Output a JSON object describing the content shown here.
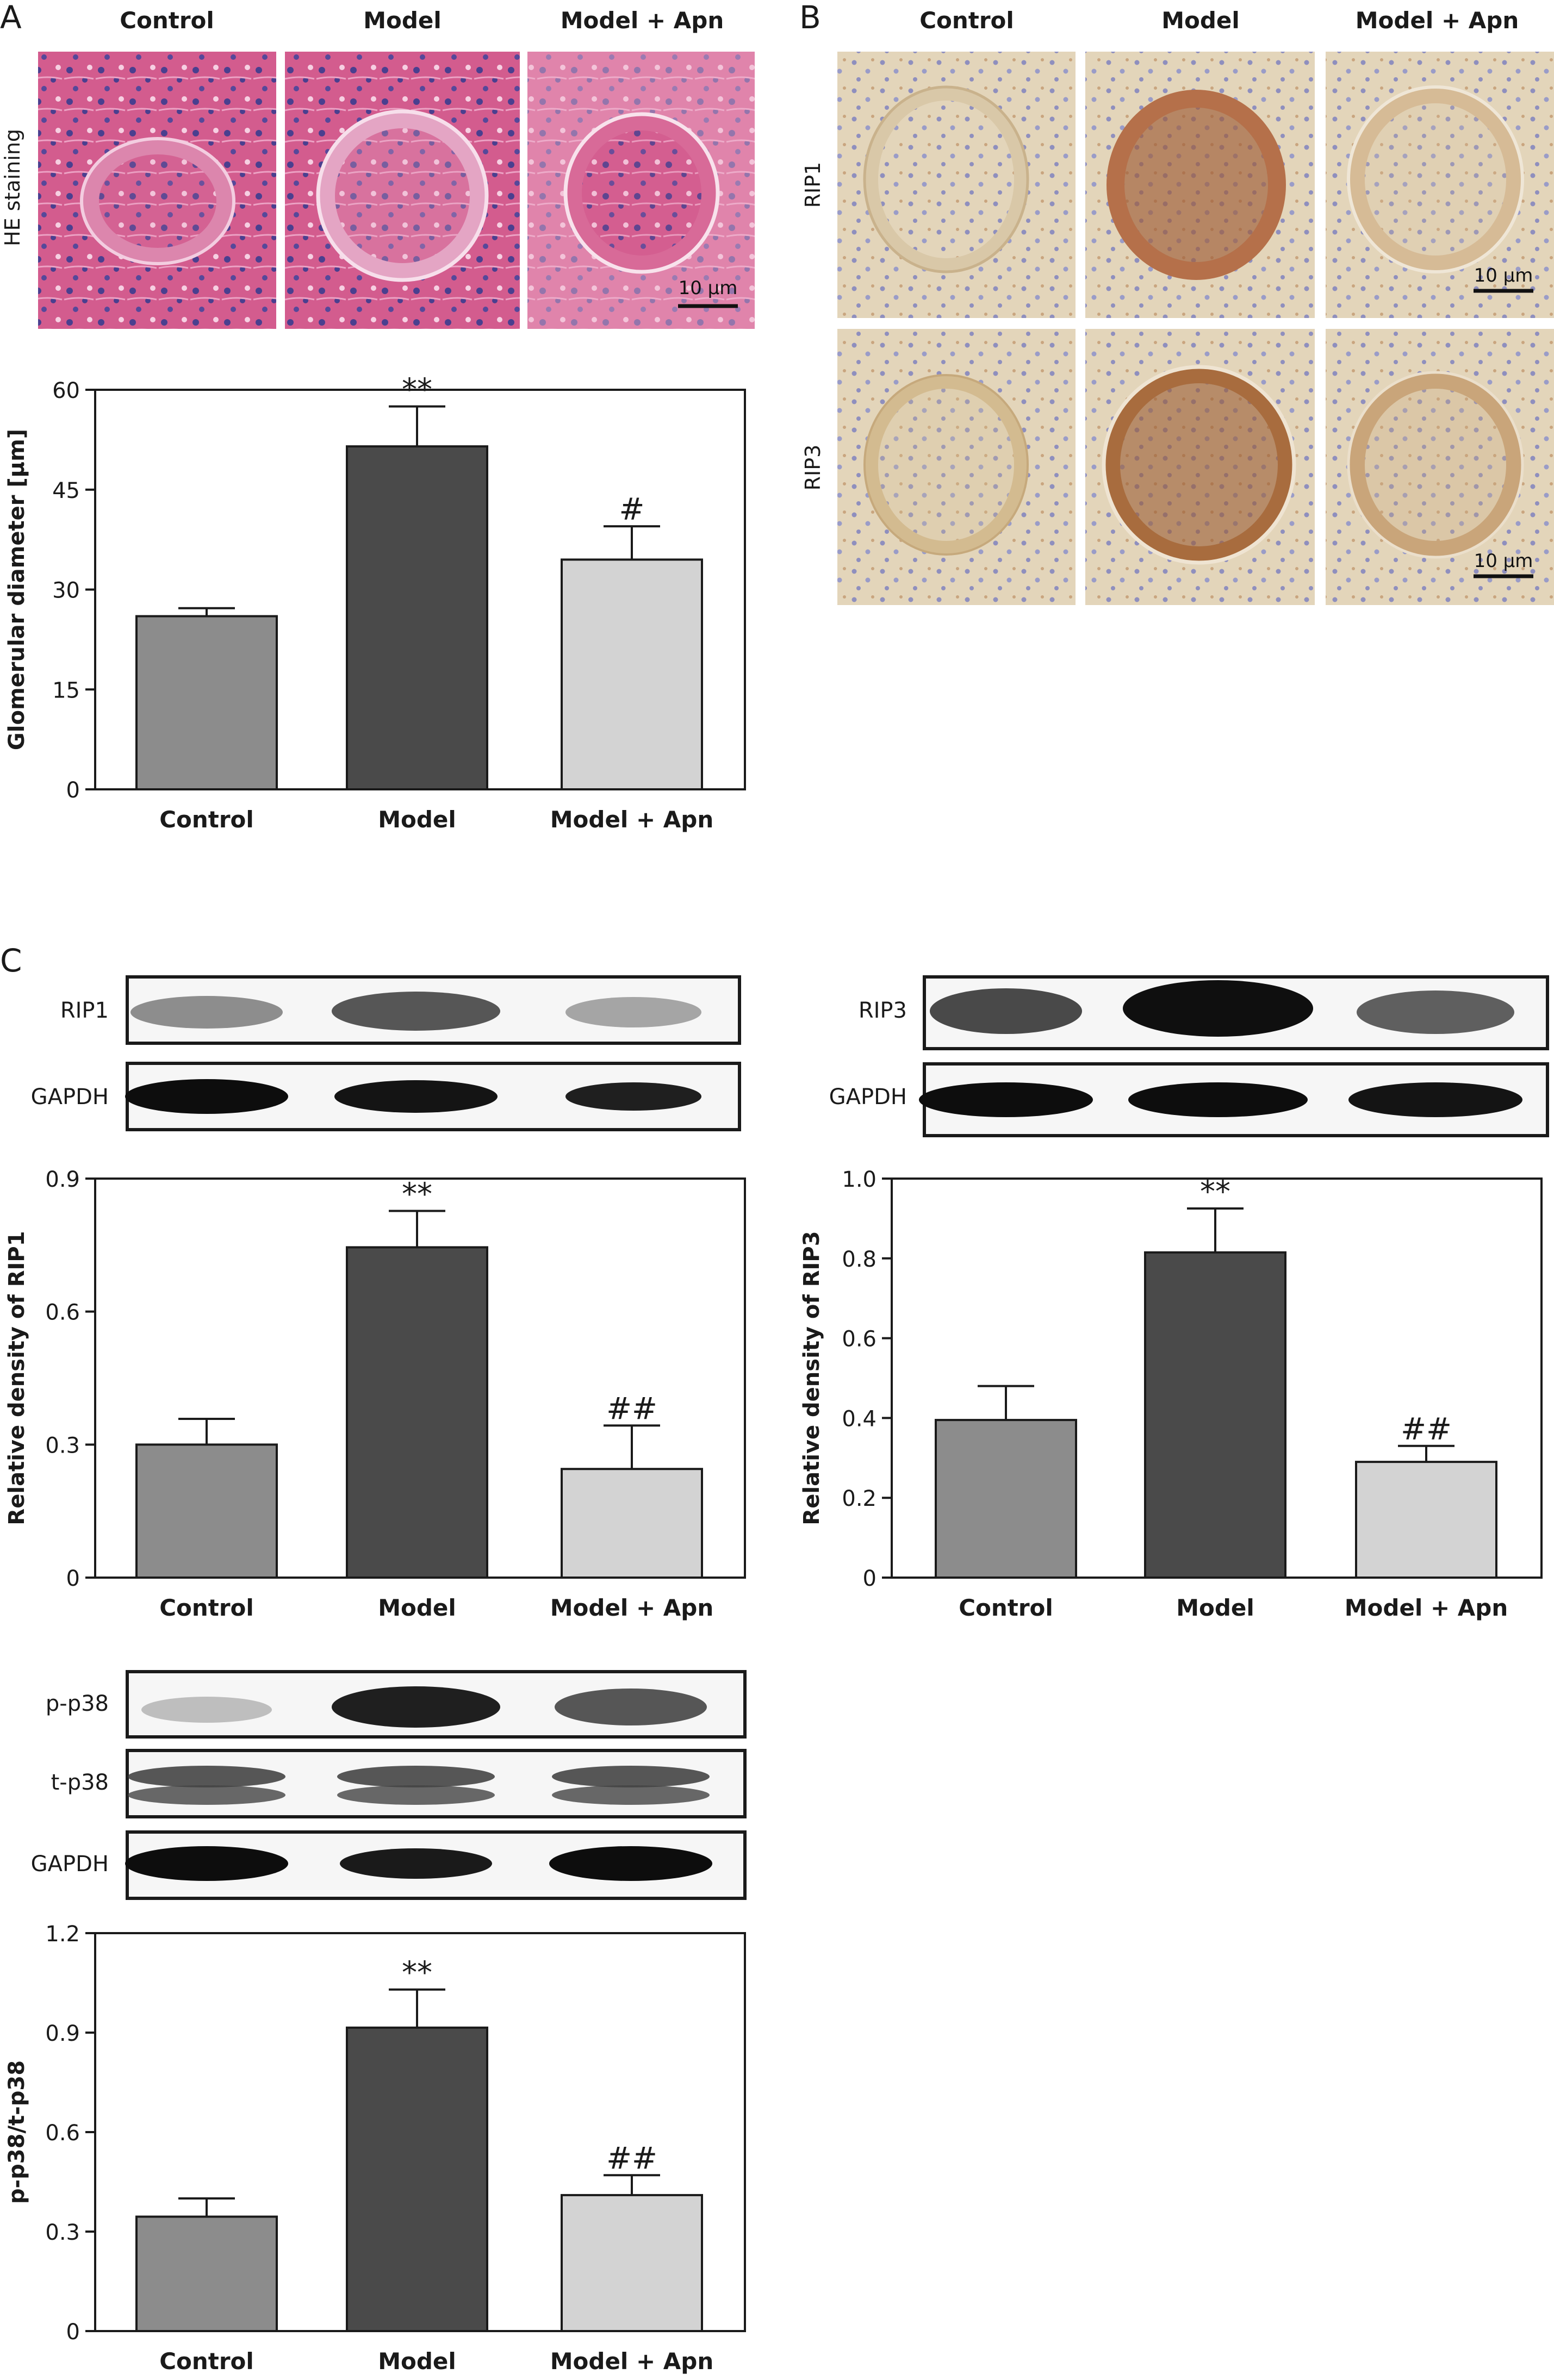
{
  "panels": {
    "A": {
      "letter": "A",
      "micrograph_row_label": "HE staining",
      "micrograph_columns": [
        "Control",
        "Model",
        "Model + Apn"
      ],
      "scale_bar": "10 μm"
    },
    "B": {
      "letter": "B",
      "micrograph_columns": [
        "Control",
        "Model",
        "Model + Apn"
      ],
      "micrograph_rows": [
        "RIP1",
        "RIP3"
      ],
      "scale_bar": "10 μm"
    },
    "C": {
      "letter": "C",
      "blot_rip1": [
        "RIP1",
        "GAPDH"
      ],
      "blot_rip3": [
        "RIP3",
        "GAPDH"
      ],
      "blot_p38": [
        "p-p38",
        "t-p38",
        "GAPDH"
      ]
    }
  },
  "colors": {
    "Control": "#8c8c8c",
    "Model": "#4a4a4a",
    "Model + Apn": "#d3d3d3",
    "he_stain": "#d35c8e",
    "ihc_background": "#e3d5ba",
    "ihc_positive": "#8a4a26"
  },
  "chart_data": [
    {
      "id": "glomerular",
      "type": "bar",
      "categories": [
        "Control",
        "Model",
        "Model + Apn"
      ],
      "values": [
        26,
        51.5,
        34.5
      ],
      "errors": [
        1.2,
        6,
        5
      ],
      "annotations": [
        "",
        "**",
        "#"
      ],
      "ylabel": "Glomerular diameter [μm]",
      "ylim": [
        0,
        60
      ],
      "yticks": [
        "0",
        "15",
        "30",
        "45",
        "60"
      ]
    },
    {
      "id": "rip1",
      "type": "bar",
      "categories": [
        "Control",
        "Model",
        "Model + Apn"
      ],
      "values": [
        0.3,
        0.745,
        0.245
      ],
      "errors": [
        0.058,
        0.082,
        0.098
      ],
      "annotations": [
        "",
        "**",
        "##"
      ],
      "ylabel": "Relative density of RIP1",
      "ylim": [
        0,
        0.9
      ],
      "yticks": [
        "0",
        "0.3",
        "0.6",
        "0.9"
      ]
    },
    {
      "id": "rip3",
      "type": "bar",
      "categories": [
        "Control",
        "Model",
        "Model + Apn"
      ],
      "values": [
        0.395,
        0.815,
        0.29
      ],
      "errors": [
        0.085,
        0.11,
        0.04
      ],
      "annotations": [
        "",
        "**",
        "##"
      ],
      "ylabel": "Relative density of RIP3",
      "ylim": [
        0,
        1.0
      ],
      "yticks": [
        "0",
        "0.2",
        "0.4",
        "0.6",
        "0.8",
        "1.0"
      ]
    },
    {
      "id": "p38",
      "type": "bar",
      "categories": [
        "Control",
        "Model",
        "Model + Apn"
      ],
      "values": [
        0.345,
        0.915,
        0.41
      ],
      "errors": [
        0.055,
        0.115,
        0.06
      ],
      "annotations": [
        "",
        "**",
        "##"
      ],
      "ylabel": "p-p38/t-p38",
      "ylim": [
        0,
        1.2
      ],
      "yticks": [
        "0",
        "0.3",
        "0.6",
        "0.9",
        "1.2"
      ]
    }
  ]
}
